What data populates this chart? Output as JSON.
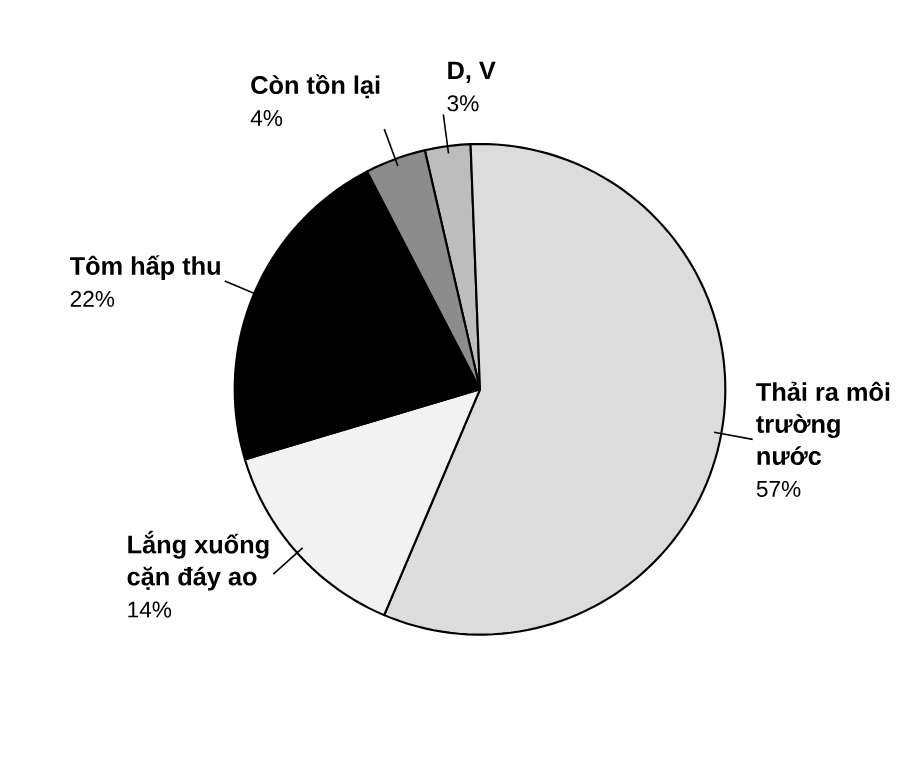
{
  "chart_data": {
    "type": "pie",
    "categories": [
      "D, V",
      "Thải ra môi trường nước",
      "Lắng xuống cặn đáy ao",
      "Tôm hấp thu",
      "Còn tồn lại"
    ],
    "values": [
      3,
      57,
      14,
      22,
      4
    ],
    "value_labels": [
      "3%",
      "57%",
      "14%",
      "22%",
      "4%"
    ],
    "colors": [
      "#bdbdbd",
      "#dcdcdc",
      "#f2f2f2",
      "#000000",
      "#8c8c8c"
    ],
    "data_labels": true
  }
}
